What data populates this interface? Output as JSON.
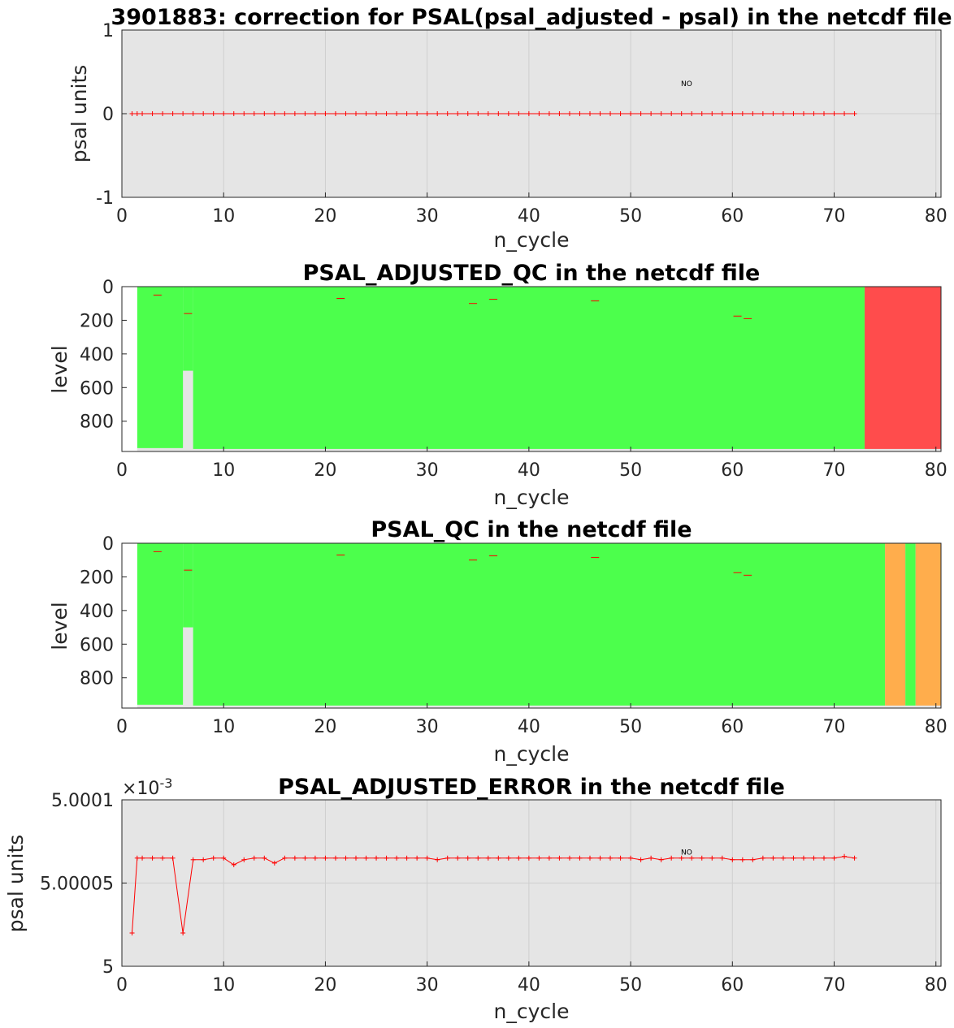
{
  "figure_title": "3901883: correction  for PSAL(psal_adjusted - psal) in the netcdf file",
  "colors": {
    "axes_bg": "#e5e5e5",
    "grid": "#cfcfcf",
    "line": "#ff0000",
    "qc_good": "#4cff4c",
    "qc_bad": "#ff4c4c",
    "qc_probably_bad": "#ffad4c",
    "missing": "#ffffff"
  },
  "chart_data": [
    {
      "type": "line",
      "title": "3901883: correction  for PSAL(psal_adjusted - psal) in the netcdf file",
      "xlabel": "n_cycle",
      "ylabel": "psal units",
      "xlim": [
        0,
        80
      ],
      "ylim": [
        -1,
        1
      ],
      "xticks": [
        "0",
        "10",
        "20",
        "30",
        "40",
        "50",
        "60",
        "70",
        "80"
      ],
      "yticks": [
        "-1",
        "0",
        "1"
      ],
      "grid": true,
      "annotation": {
        "text": "NO",
        "x": 55.5,
        "y": 0.33
      },
      "series": [
        {
          "x": [
            1,
            1.5,
            2,
            3,
            4,
            5,
            6,
            7,
            8,
            9,
            10,
            11,
            12,
            13,
            14,
            15,
            16,
            17,
            18,
            19,
            20,
            21,
            22,
            23,
            24,
            25,
            26,
            27,
            28,
            29,
            30,
            31,
            32,
            33,
            34,
            35,
            36,
            37,
            38,
            39,
            40,
            41,
            42,
            43,
            44,
            45,
            46,
            47,
            48,
            49,
            50,
            51,
            52,
            53,
            54,
            55,
            56,
            57,
            58,
            59,
            60,
            61,
            62,
            63,
            64,
            65,
            66,
            67,
            68,
            69,
            70,
            71,
            72
          ],
          "y": [
            0,
            0,
            0,
            0,
            0,
            0,
            0,
            0,
            0,
            0,
            0,
            0,
            0,
            0,
            0,
            0,
            0,
            0,
            0,
            0,
            0,
            0,
            0,
            0,
            0,
            0,
            0,
            0,
            0,
            0,
            0,
            0,
            0,
            0,
            0,
            0,
            0,
            0,
            0,
            0,
            0,
            0,
            0,
            0,
            0,
            0,
            0,
            0,
            0,
            0,
            0,
            0,
            0,
            0,
            0,
            0,
            0,
            0,
            0,
            0,
            0,
            0,
            0,
            0,
            0,
            0,
            0,
            0,
            0,
            0,
            0,
            0,
            0
          ]
        }
      ]
    },
    {
      "type": "heatmap",
      "title": "PSAL_ADJUSTED_QC  in the netcdf file",
      "xlabel": "n_cycle",
      "ylabel": "level",
      "xlim": [
        0,
        80
      ],
      "ylim": [
        0,
        980
      ],
      "y_reversed": true,
      "xticks": [
        "0",
        "10",
        "20",
        "30",
        "40",
        "50",
        "60",
        "70",
        "80"
      ],
      "yticks": [
        "0",
        "200",
        "400",
        "600",
        "800"
      ],
      "columns": [
        {
          "x0": 1,
          "x1": 1.5,
          "qc": "missing"
        },
        {
          "x0": 1.5,
          "x1": 6,
          "qc": "good",
          "bottom": 960
        },
        {
          "x0": 6,
          "x1": 7,
          "qc": "good",
          "bottom": 500
        },
        {
          "x0": 7,
          "x1": 73,
          "qc": "good",
          "bottom": 965
        },
        {
          "x0": 73,
          "x1": 80.5,
          "qc": "bad",
          "bottom": 965
        }
      ],
      "dashes": [
        {
          "x": 3.5,
          "level": 50
        },
        {
          "x": 6.5,
          "level": 160
        },
        {
          "x": 21.5,
          "level": 70
        },
        {
          "x": 34.5,
          "level": 100
        },
        {
          "x": 36.5,
          "level": 75
        },
        {
          "x": 46.5,
          "level": 85
        },
        {
          "x": 60.5,
          "level": 175
        },
        {
          "x": 61.5,
          "level": 190
        }
      ]
    },
    {
      "type": "heatmap",
      "title": "PSAL_QC  in the netcdf file",
      "xlabel": "n_cycle",
      "ylabel": "level",
      "xlim": [
        0,
        80
      ],
      "ylim": [
        0,
        980
      ],
      "y_reversed": true,
      "xticks": [
        "0",
        "10",
        "20",
        "30",
        "40",
        "50",
        "60",
        "70",
        "80"
      ],
      "yticks": [
        "0",
        "200",
        "400",
        "600",
        "800"
      ],
      "columns": [
        {
          "x0": 1,
          "x1": 1.5,
          "qc": "missing"
        },
        {
          "x0": 1.5,
          "x1": 6,
          "qc": "good",
          "bottom": 960
        },
        {
          "x0": 6,
          "x1": 7,
          "qc": "good",
          "bottom": 500
        },
        {
          "x0": 7,
          "x1": 75,
          "qc": "good",
          "bottom": 965
        },
        {
          "x0": 75,
          "x1": 77,
          "qc": "probably_bad",
          "bottom": 965
        },
        {
          "x0": 77,
          "x1": 78,
          "qc": "good",
          "bottom": 965
        },
        {
          "x0": 78,
          "x1": 80.5,
          "qc": "probably_bad",
          "bottom": 965
        }
      ],
      "dashes": [
        {
          "x": 3.5,
          "level": 50
        },
        {
          "x": 6.5,
          "level": 160
        },
        {
          "x": 21.5,
          "level": 70
        },
        {
          "x": 34.5,
          "level": 100
        },
        {
          "x": 36.5,
          "level": 75
        },
        {
          "x": 46.5,
          "level": 85
        },
        {
          "x": 60.5,
          "level": 175
        },
        {
          "x": 61.5,
          "level": 190
        }
      ]
    },
    {
      "type": "line",
      "title": "PSAL_ADJUSTED_ERROR  in the netcdf file",
      "xlabel": "n_cycle",
      "ylabel": "psal units",
      "exponent_label": "×10",
      "exponent": "-3",
      "xlim": [
        0,
        80
      ],
      "ylim": [
        5,
        5.0001
      ],
      "xticks": [
        "0",
        "10",
        "20",
        "30",
        "40",
        "50",
        "60",
        "70",
        "80"
      ],
      "yticks": [
        "5",
        "5.00005",
        "5.0001"
      ],
      "grid": true,
      "annotation": {
        "text": "NO",
        "x": 55.5,
        "y": 5.000067
      },
      "series": [
        {
          "x": [
            1,
            1.5,
            2,
            3,
            4,
            5,
            6,
            7,
            8,
            9,
            10,
            11,
            12,
            13,
            14,
            15,
            16,
            17,
            18,
            19,
            20,
            21,
            22,
            23,
            24,
            25,
            26,
            27,
            28,
            29,
            30,
            31,
            32,
            33,
            34,
            35,
            36,
            37,
            38,
            39,
            40,
            41,
            42,
            43,
            44,
            45,
            46,
            47,
            48,
            49,
            50,
            51,
            52,
            53,
            54,
            55,
            56,
            57,
            58,
            59,
            60,
            61,
            62,
            63,
            64,
            65,
            66,
            67,
            68,
            69,
            70,
            71,
            72
          ],
          "y": [
            5.00002,
            5.000065,
            5.000065,
            5.000065,
            5.000065,
            5.000065,
            5.00002,
            5.000064,
            5.000064,
            5.000065,
            5.000065,
            5.000061,
            5.000064,
            5.000065,
            5.000065,
            5.000062,
            5.000065,
            5.000065,
            5.000065,
            5.000065,
            5.000065,
            5.000065,
            5.000065,
            5.000065,
            5.000065,
            5.000065,
            5.000065,
            5.000065,
            5.000065,
            5.000065,
            5.000065,
            5.000064,
            5.000065,
            5.000065,
            5.000065,
            5.000065,
            5.000065,
            5.000065,
            5.000065,
            5.000065,
            5.000065,
            5.000065,
            5.000065,
            5.000065,
            5.000065,
            5.000065,
            5.000065,
            5.000065,
            5.000065,
            5.000065,
            5.000065,
            5.000064,
            5.000065,
            5.000064,
            5.000065,
            5.000065,
            5.000065,
            5.000065,
            5.000065,
            5.000065,
            5.000064,
            5.000064,
            5.000064,
            5.000065,
            5.000065,
            5.000065,
            5.000065,
            5.000065,
            5.000065,
            5.000065,
            5.000065,
            5.000066,
            5.000065
          ]
        }
      ]
    }
  ]
}
